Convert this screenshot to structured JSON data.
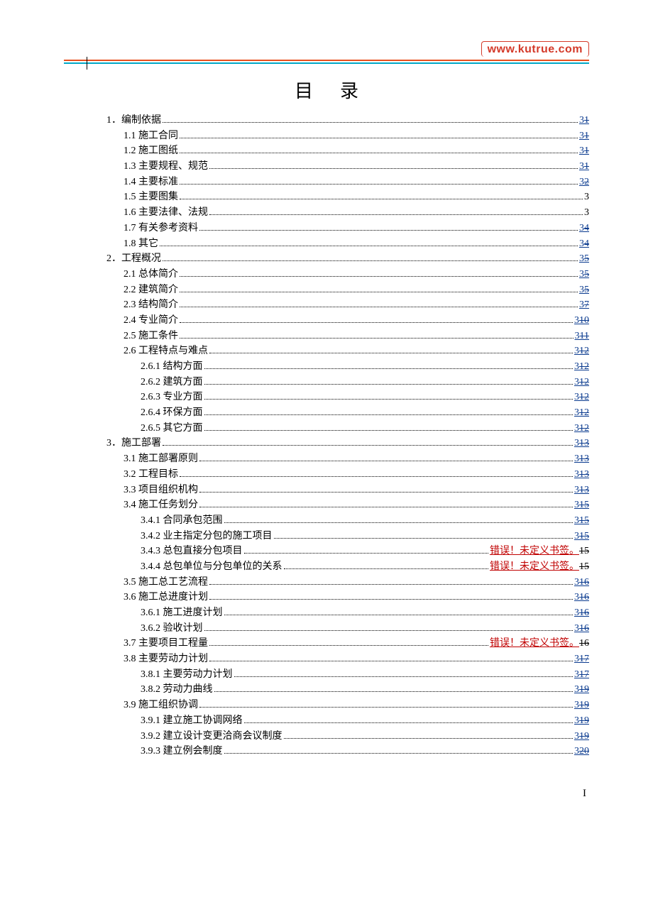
{
  "watermark": "www.kutrue.com",
  "title": "目录",
  "footer": "I",
  "colors": {
    "rule_top": "#e94e1b",
    "rule_bottom": "#00a8c6",
    "link": "#0b3b8f",
    "error": "#c00000",
    "text": "#000000",
    "background": "#ffffff"
  },
  "toc": [
    {
      "level": 1,
      "label": "1．编制依据",
      "page": [
        {
          "t": "link",
          "v": "3"
        },
        {
          "t": "strike",
          "v": "1"
        }
      ]
    },
    {
      "level": 2,
      "label": "1.1 施工合同",
      "page": [
        {
          "t": "link",
          "v": "3"
        },
        {
          "t": "strike",
          "v": "1"
        }
      ]
    },
    {
      "level": 2,
      "label": "1.2 施工图纸",
      "page": [
        {
          "t": "link",
          "v": "3"
        },
        {
          "t": "strike",
          "v": "1"
        }
      ]
    },
    {
      "level": 2,
      "label": "1.3 主要规程、规范",
      "page": [
        {
          "t": "link",
          "v": "3"
        },
        {
          "t": "strike",
          "v": "1"
        }
      ]
    },
    {
      "level": 2,
      "label": "1.4 主要标准",
      "page": [
        {
          "t": "link",
          "v": "3"
        },
        {
          "t": "strike",
          "v": "2"
        }
      ]
    },
    {
      "level": 2,
      "label": "1.5 主要图集",
      "page": [
        {
          "t": "plain",
          "v": "3"
        }
      ]
    },
    {
      "level": 2,
      "label": "1.6 主要法律、法规",
      "page": [
        {
          "t": "plain",
          "v": "3"
        }
      ]
    },
    {
      "level": 2,
      "label": "1.7 有关参考资料",
      "page": [
        {
          "t": "link",
          "v": "3"
        },
        {
          "t": "strike",
          "v": "4"
        }
      ]
    },
    {
      "level": 2,
      "label": "1.8 其它",
      "page": [
        {
          "t": "link",
          "v": "3"
        },
        {
          "t": "strike",
          "v": "4"
        }
      ]
    },
    {
      "level": 1,
      "label": "2．工程概况",
      "page": [
        {
          "t": "link",
          "v": "3"
        },
        {
          "t": "strike",
          "v": "5"
        }
      ]
    },
    {
      "level": 2,
      "label": "2.1 总体简介",
      "page": [
        {
          "t": "link",
          "v": "3"
        },
        {
          "t": "strike",
          "v": "5"
        }
      ]
    },
    {
      "level": 2,
      "label": "2.2 建筑简介",
      "page": [
        {
          "t": "link",
          "v": "3"
        },
        {
          "t": "strike",
          "v": "5"
        }
      ]
    },
    {
      "level": 2,
      "label": "2.3 结构简介",
      "page": [
        {
          "t": "link",
          "v": "3"
        },
        {
          "t": "strike",
          "v": "7"
        }
      ]
    },
    {
      "level": 2,
      "label": "2.4 专业简介",
      "page": [
        {
          "t": "link",
          "v": "3"
        },
        {
          "t": "strike",
          "v": "10"
        }
      ]
    },
    {
      "level": 2,
      "label": "2.5 施工条件",
      "page": [
        {
          "t": "link",
          "v": "3"
        },
        {
          "t": "strike",
          "v": "11"
        }
      ]
    },
    {
      "level": 2,
      "label": "2.6 工程特点与难点",
      "page": [
        {
          "t": "link",
          "v": "3"
        },
        {
          "t": "strike",
          "v": "12"
        }
      ]
    },
    {
      "level": 3,
      "label": "2.6.1 结构方面",
      "page": [
        {
          "t": "link",
          "v": "3"
        },
        {
          "t": "strike",
          "v": "12"
        }
      ]
    },
    {
      "level": 3,
      "label": "2.6.2 建筑方面",
      "page": [
        {
          "t": "link",
          "v": "3"
        },
        {
          "t": "strike",
          "v": "12"
        }
      ]
    },
    {
      "level": 3,
      "label": "2.6.3  专业方面",
      "page": [
        {
          "t": "link",
          "v": "3"
        },
        {
          "t": "strike",
          "v": "12"
        }
      ]
    },
    {
      "level": 3,
      "label": "2.6.4 环保方面",
      "page": [
        {
          "t": "link",
          "v": "3"
        },
        {
          "t": "strike",
          "v": "12"
        }
      ]
    },
    {
      "level": 3,
      "label": "2.6.5  其它方面",
      "page": [
        {
          "t": "link",
          "v": "3"
        },
        {
          "t": "strike",
          "v": "12"
        }
      ]
    },
    {
      "level": 1,
      "label": "3．施工部署",
      "page": [
        {
          "t": "link",
          "v": "3"
        },
        {
          "t": "strike",
          "v": "13"
        }
      ]
    },
    {
      "level": 2,
      "label": "3.1  施工部署原则",
      "page": [
        {
          "t": "link",
          "v": "3"
        },
        {
          "t": "strike",
          "v": "13"
        }
      ]
    },
    {
      "level": 2,
      "label": "3.2 工程目标",
      "page": [
        {
          "t": "link",
          "v": "3"
        },
        {
          "t": "strike",
          "v": "13"
        }
      ]
    },
    {
      "level": 2,
      "label": "3.3 项目组织机构",
      "page": [
        {
          "t": "link",
          "v": "3"
        },
        {
          "t": "strike",
          "v": "13"
        }
      ]
    },
    {
      "level": 2,
      "label": "3.4 施工任务划分",
      "page": [
        {
          "t": "link",
          "v": "3"
        },
        {
          "t": "strike",
          "v": "15"
        }
      ]
    },
    {
      "level": 3,
      "label": "3.4.1 合同承包范围",
      "page": [
        {
          "t": "link",
          "v": "3"
        },
        {
          "t": "strike",
          "v": "15"
        }
      ]
    },
    {
      "level": 3,
      "label": "3.4.2 业主指定分包的施工项目",
      "page": [
        {
          "t": "link",
          "v": "3"
        },
        {
          "t": "strike",
          "v": "15"
        }
      ]
    },
    {
      "level": 3,
      "label": "3.4.3 总包直接分包项目",
      "page": [
        {
          "t": "err",
          "v": "错误！未定义书签。"
        },
        {
          "t": "strike-plain",
          "v": "15"
        }
      ]
    },
    {
      "level": 3,
      "label": "3.4.4 总包单位与分包单位的关系",
      "page": [
        {
          "t": "err",
          "v": "错误！未定义书签。"
        },
        {
          "t": "strike-plain",
          "v": "15"
        }
      ]
    },
    {
      "level": 2,
      "label": "3.5 施工总工艺流程",
      "page": [
        {
          "t": "link",
          "v": "3"
        },
        {
          "t": "strike",
          "v": "16"
        }
      ]
    },
    {
      "level": 2,
      "label": "3.6 施工总进度计划",
      "page": [
        {
          "t": "link",
          "v": "3"
        },
        {
          "t": "strike",
          "v": "16"
        }
      ]
    },
    {
      "level": 3,
      "label": "3.6.1 施工进度计划",
      "page": [
        {
          "t": "link",
          "v": "3"
        },
        {
          "t": "strike",
          "v": "16"
        }
      ]
    },
    {
      "level": 3,
      "label": "3.6.2 验收计划",
      "page": [
        {
          "t": "link",
          "v": "3"
        },
        {
          "t": "strike",
          "v": "16"
        }
      ]
    },
    {
      "level": 2,
      "label": "3.7 主要项目工程量",
      "page": [
        {
          "t": "err",
          "v": "错误！未定义书签。"
        },
        {
          "t": "strike-plain",
          "v": "16"
        }
      ]
    },
    {
      "level": 2,
      "label": "3.8 主要劳动力计划",
      "page": [
        {
          "t": "link",
          "v": "3"
        },
        {
          "t": "strike",
          "v": "17"
        }
      ]
    },
    {
      "level": 3,
      "label": "3.8.1 主要劳动力计划",
      "page": [
        {
          "t": "link",
          "v": "3"
        },
        {
          "t": "strike",
          "v": "17"
        }
      ]
    },
    {
      "level": 3,
      "label": "3.8.2 劳动力曲线",
      "page": [
        {
          "t": "link",
          "v": "3"
        },
        {
          "t": "strike",
          "v": "19"
        }
      ]
    },
    {
      "level": 2,
      "label": "3.9 施工组织协调",
      "page": [
        {
          "t": "link",
          "v": "3"
        },
        {
          "t": "strike",
          "v": "19"
        }
      ]
    },
    {
      "level": 3,
      "label": "3.9.1 建立施工协调网络",
      "page": [
        {
          "t": "link",
          "v": "3"
        },
        {
          "t": "strike",
          "v": "19"
        }
      ]
    },
    {
      "level": 3,
      "label": "3.9.2 建立设计变更洽商会议制度",
      "page": [
        {
          "t": "link",
          "v": "3"
        },
        {
          "t": "strike",
          "v": "19"
        }
      ]
    },
    {
      "level": 3,
      "label": "3.9.3 建立例会制度",
      "page": [
        {
          "t": "link",
          "v": "3"
        },
        {
          "t": "strike",
          "v": "20"
        }
      ]
    }
  ]
}
